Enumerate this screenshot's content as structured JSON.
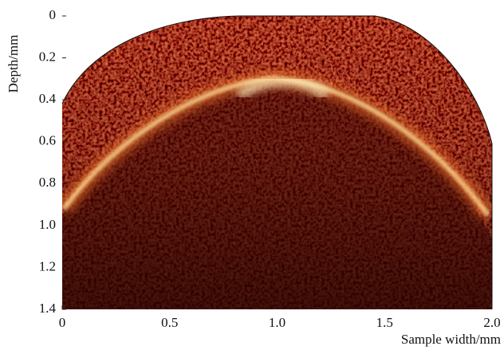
{
  "chart_data": {
    "type": "heatmap",
    "xlabel": "Sample width/mm",
    "ylabel": "Depth/mm",
    "xlim": [
      0,
      2.0
    ],
    "ylim": [
      0,
      1.4
    ],
    "y_inverted": true,
    "xticks": [
      0,
      0.5,
      {
        "value": 1,
        "label": "1.0"
      },
      1.5,
      {
        "value": 2,
        "label": "2.0"
      }
    ],
    "yticks": [
      0,
      0.2,
      0.4,
      0.6,
      0.8,
      {
        "value": 1,
        "label": "1.0"
      },
      1.2,
      1.4
    ]
  }
}
